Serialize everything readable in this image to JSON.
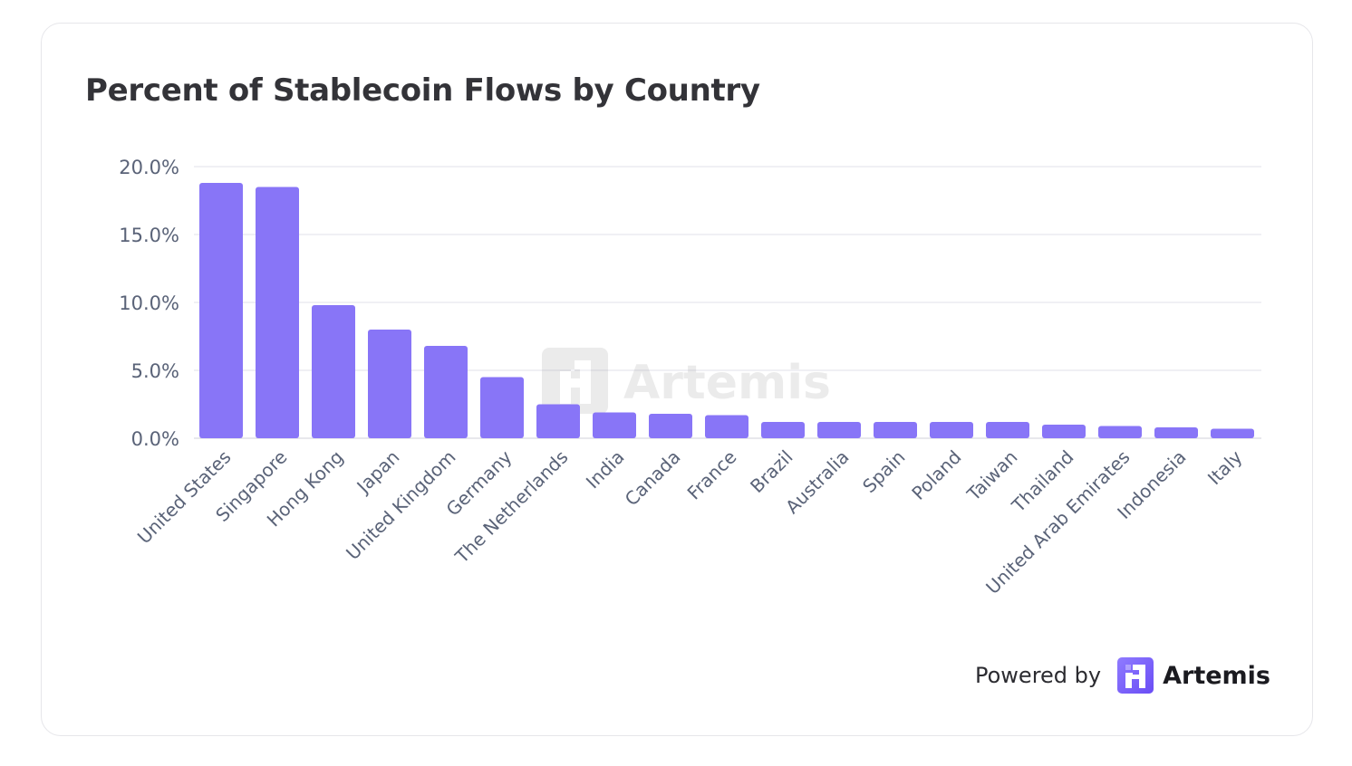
{
  "chart_data": {
    "type": "bar",
    "title": "Percent of Stablecoin Flows by Country",
    "xlabel": "",
    "ylabel": "",
    "ylim": [
      0,
      20
    ],
    "yticks": [
      "0.0%",
      "5.0%",
      "10.0%",
      "15.0%",
      "20.0%"
    ],
    "ytick_values": [
      0,
      5,
      10,
      15,
      20
    ],
    "grid": true,
    "categories": [
      "United States",
      "Singapore",
      "Hong Kong",
      "Japan",
      "United Kingdom",
      "Germany",
      "The Netherlands",
      "India",
      "Canada",
      "France",
      "Brazil",
      "Australia",
      "Spain",
      "Poland",
      "Taiwan",
      "Thailand",
      "United Arab Emirates",
      "Indonesia",
      "Italy"
    ],
    "values": [
      18.8,
      18.5,
      9.8,
      8.0,
      6.8,
      4.5,
      2.5,
      1.9,
      1.8,
      1.7,
      1.2,
      1.2,
      1.2,
      1.2,
      1.2,
      1.0,
      0.9,
      0.8,
      0.7
    ],
    "bar_color": "#8875f7"
  },
  "watermark": {
    "text": "Artemis"
  },
  "footer": {
    "powered_by": "Powered by",
    "brand": "Artemis",
    "brand_color": "#7b61ff"
  }
}
